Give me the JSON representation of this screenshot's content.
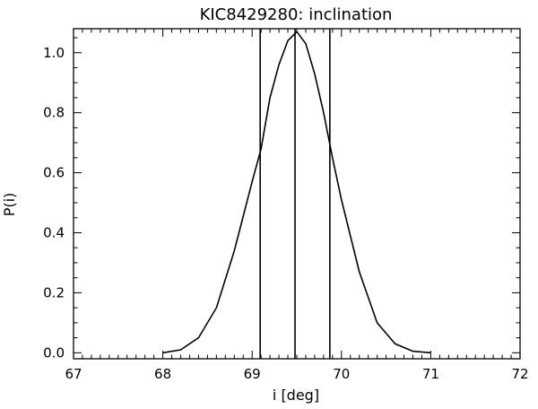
{
  "chart_data": {
    "type": "line",
    "title": "KIC8429280: inclination",
    "xlabel": "i [deg]",
    "ylabel": "P(i)",
    "xlim": [
      67,
      72
    ],
    "ylim": [
      -0.02,
      1.08
    ],
    "xticks": [
      67,
      68,
      69,
      70,
      71,
      72
    ],
    "xtick_labels": [
      "67",
      "68",
      "69",
      "70",
      "71",
      "72"
    ],
    "yticks": [
      0.0,
      0.2,
      0.4,
      0.6,
      0.8,
      1.0
    ],
    "ytick_labels": [
      "0.0",
      "0.2",
      "0.4",
      "0.6",
      "0.8",
      "1.0"
    ],
    "grid": false,
    "series": [
      {
        "x": [
          68.0,
          68.2,
          68.4,
          68.6,
          68.8,
          69.0,
          69.1,
          69.2,
          69.3,
          69.4,
          69.5,
          69.6,
          69.7,
          69.8,
          69.9,
          70.0,
          70.2,
          70.4,
          70.6,
          70.8,
          71.0
        ],
        "values": [
          0.0,
          0.01,
          0.05,
          0.15,
          0.34,
          0.57,
          0.68,
          0.85,
          0.96,
          1.04,
          1.07,
          1.03,
          0.93,
          0.8,
          0.65,
          0.51,
          0.27,
          0.1,
          0.03,
          0.005,
          0.0
        ]
      }
    ],
    "vertical_lines": [
      69.09,
      69.48,
      69.87
    ]
  }
}
